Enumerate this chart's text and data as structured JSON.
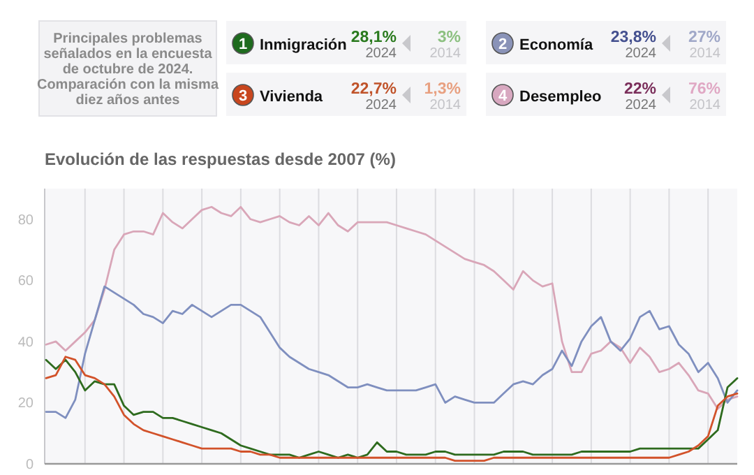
{
  "chart_data": [
    {
      "type": "other",
      "title": "Principales problemas señalados en la encuesta de octubre de 2024. Comparación con la misma diez años antes",
      "annotations": [
        "1",
        "Inmigración",
        "28,1%",
        "2024",
        "3%",
        "2014",
        "2",
        "Economía",
        "23,8%",
        "2024",
        "27%",
        "2014",
        "3",
        "Vivienda",
        "22,7%",
        "2024",
        "1,3%",
        "2014",
        "4",
        "Desempleo",
        "22%",
        "2024",
        "76%",
        "2014"
      ]
    },
    {
      "type": "line",
      "title": "Evolución de las respuestas desde 2007 (%)",
      "categories": [
        null,
        null,
        null,
        null,
        null,
        null,
        null,
        null,
        null,
        null,
        null,
        null,
        null,
        null,
        null,
        null,
        null,
        null,
        null,
        null,
        null,
        null,
        null,
        null,
        null,
        null,
        null,
        null,
        null,
        null,
        null,
        null,
        null,
        null,
        null,
        null,
        null,
        null,
        null,
        null,
        null,
        null,
        null,
        null,
        null,
        null,
        null,
        null,
        null,
        null,
        null,
        null,
        null,
        null,
        null,
        null,
        null,
        null,
        null,
        null,
        null,
        null,
        null,
        null,
        null,
        null,
        null,
        null,
        null,
        null,
        null,
        null
      ],
      "ylim": [
        0,
        90
      ],
      "yticks": [
        0,
        20,
        40,
        60,
        80
      ],
      "tick_labels": "y",
      "grid": "x",
      "marker": "none",
      "line_style": "solid",
      "series": [
        {
          "color": "#d9a6b8",
          "values": [
            39,
            40,
            37,
            40,
            43,
            47,
            57,
            70,
            75,
            76,
            76,
            75,
            82,
            79,
            77,
            80,
            83,
            84,
            82,
            81,
            84,
            80,
            79,
            80,
            81,
            79,
            78,
            81,
            78,
            82,
            78,
            76,
            79,
            79,
            79,
            79,
            78,
            77,
            76,
            75,
            73,
            71,
            69,
            67,
            66,
            65,
            63,
            60,
            57,
            63,
            60,
            58,
            59,
            40,
            30,
            30,
            36,
            37,
            40,
            38,
            33,
            38,
            35,
            30,
            31,
            33,
            29,
            24,
            23,
            18,
            21,
            22
          ]
        },
        {
          "color": "#7f8fbf",
          "values": [
            17,
            17,
            15,
            21,
            36,
            47,
            58,
            56,
            54,
            52,
            49,
            48,
            46,
            50,
            49,
            52,
            50,
            48,
            50,
            52,
            52,
            50,
            48,
            43,
            38,
            35,
            33,
            31,
            30,
            29,
            27,
            25,
            25,
            26,
            25,
            24,
            24,
            24,
            24,
            25,
            26,
            20,
            22,
            21,
            20,
            20,
            20,
            23,
            26,
            27,
            26,
            29,
            31,
            37,
            32,
            40,
            45,
            48,
            40,
            37,
            41,
            48,
            50,
            44,
            45,
            39,
            36,
            30,
            33,
            28,
            20,
            24
          ]
        },
        {
          "color": "#2e6b1e",
          "values": [
            34,
            31,
            34,
            30,
            24,
            27,
            26,
            26,
            19,
            16,
            17,
            17,
            15,
            15,
            14,
            13,
            12,
            11,
            10,
            8,
            6,
            5,
            4,
            3,
            3,
            3,
            2,
            3,
            4,
            3,
            2,
            3,
            2,
            3,
            7,
            4,
            4,
            3,
            3,
            3,
            4,
            4,
            3,
            3,
            3,
            3,
            3,
            4,
            4,
            4,
            3,
            3,
            3,
            3,
            3,
            4,
            4,
            4,
            4,
            4,
            4,
            5,
            5,
            5,
            5,
            5,
            5,
            5,
            8,
            11,
            25,
            28
          ]
        },
        {
          "color": "#d2522a",
          "values": [
            28,
            29,
            35,
            34,
            29,
            28,
            26,
            22,
            16,
            13,
            11,
            10,
            9,
            8,
            7,
            6,
            5,
            5,
            5,
            5,
            4,
            4,
            3,
            3,
            2,
            2,
            2,
            2,
            2,
            2,
            2,
            2,
            2,
            2,
            2,
            2,
            2,
            2,
            2,
            2,
            2,
            2,
            1,
            1,
            1,
            1,
            2,
            2,
            2,
            2,
            2,
            2,
            2,
            2,
            2,
            2,
            2,
            2,
            2,
            2,
            2,
            2,
            2,
            2,
            2,
            3,
            4,
            6,
            9,
            19,
            22,
            23
          ]
        }
      ]
    }
  ]
}
